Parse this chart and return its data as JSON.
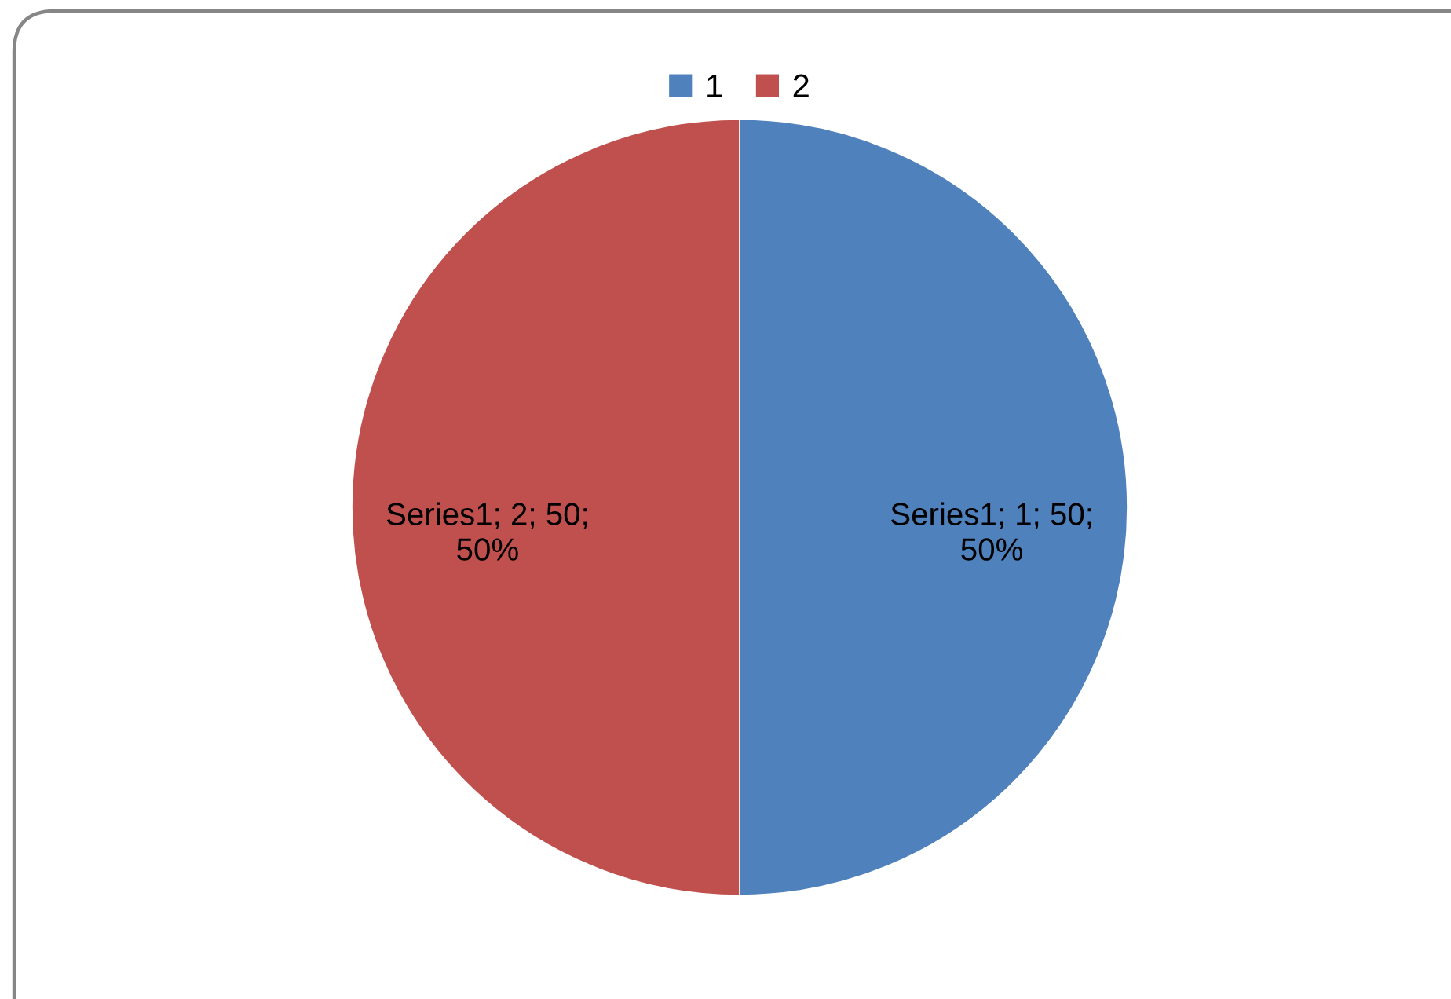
{
  "chart_data": {
    "type": "pie",
    "categories": [
      "1",
      "2"
    ],
    "values": [
      50,
      50
    ],
    "colors": [
      "#4f81bd",
      "#c0504d"
    ],
    "value_labels": [
      "Series1; 1; 50;\n50%",
      "Series1; 2; 50;\n50%"
    ],
    "legend": "top"
  }
}
